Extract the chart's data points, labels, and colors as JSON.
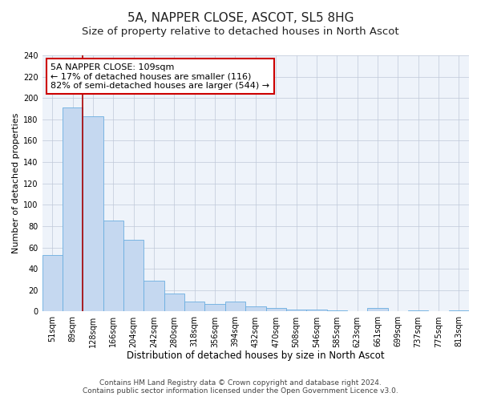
{
  "title": "5A, NAPPER CLOSE, ASCOT, SL5 8HG",
  "subtitle": "Size of property relative to detached houses in North Ascot",
  "xlabel": "Distribution of detached houses by size in North Ascot",
  "ylabel": "Number of detached properties",
  "bar_labels": [
    "51sqm",
    "89sqm",
    "128sqm",
    "166sqm",
    "204sqm",
    "242sqm",
    "280sqm",
    "318sqm",
    "356sqm",
    "394sqm",
    "432sqm",
    "470sqm",
    "508sqm",
    "546sqm",
    "585sqm",
    "623sqm",
    "661sqm",
    "699sqm",
    "737sqm",
    "775sqm",
    "813sqm"
  ],
  "bar_values": [
    53,
    191,
    183,
    85,
    67,
    29,
    17,
    9,
    7,
    9,
    5,
    3,
    2,
    2,
    1,
    0,
    3,
    0,
    1,
    0,
    1
  ],
  "bar_color": "#c5d8f0",
  "bar_edge_color": "#6aaee0",
  "vline_color": "#aa0000",
  "annotation_text": "5A NAPPER CLOSE: 109sqm\n← 17% of detached houses are smaller (116)\n82% of semi-detached houses are larger (544) →",
  "annotation_box_color": "#ffffff",
  "annotation_box_edge_color": "#cc0000",
  "ylim": [
    0,
    240
  ],
  "yticks": [
    0,
    20,
    40,
    60,
    80,
    100,
    120,
    140,
    160,
    180,
    200,
    220,
    240
  ],
  "footer1": "Contains HM Land Registry data © Crown copyright and database right 2024.",
  "footer2": "Contains public sector information licensed under the Open Government Licence v3.0.",
  "title_fontsize": 11,
  "subtitle_fontsize": 9.5,
  "xlabel_fontsize": 8.5,
  "ylabel_fontsize": 8,
  "tick_fontsize": 7,
  "annotation_fontsize": 8,
  "footer_fontsize": 6.5
}
